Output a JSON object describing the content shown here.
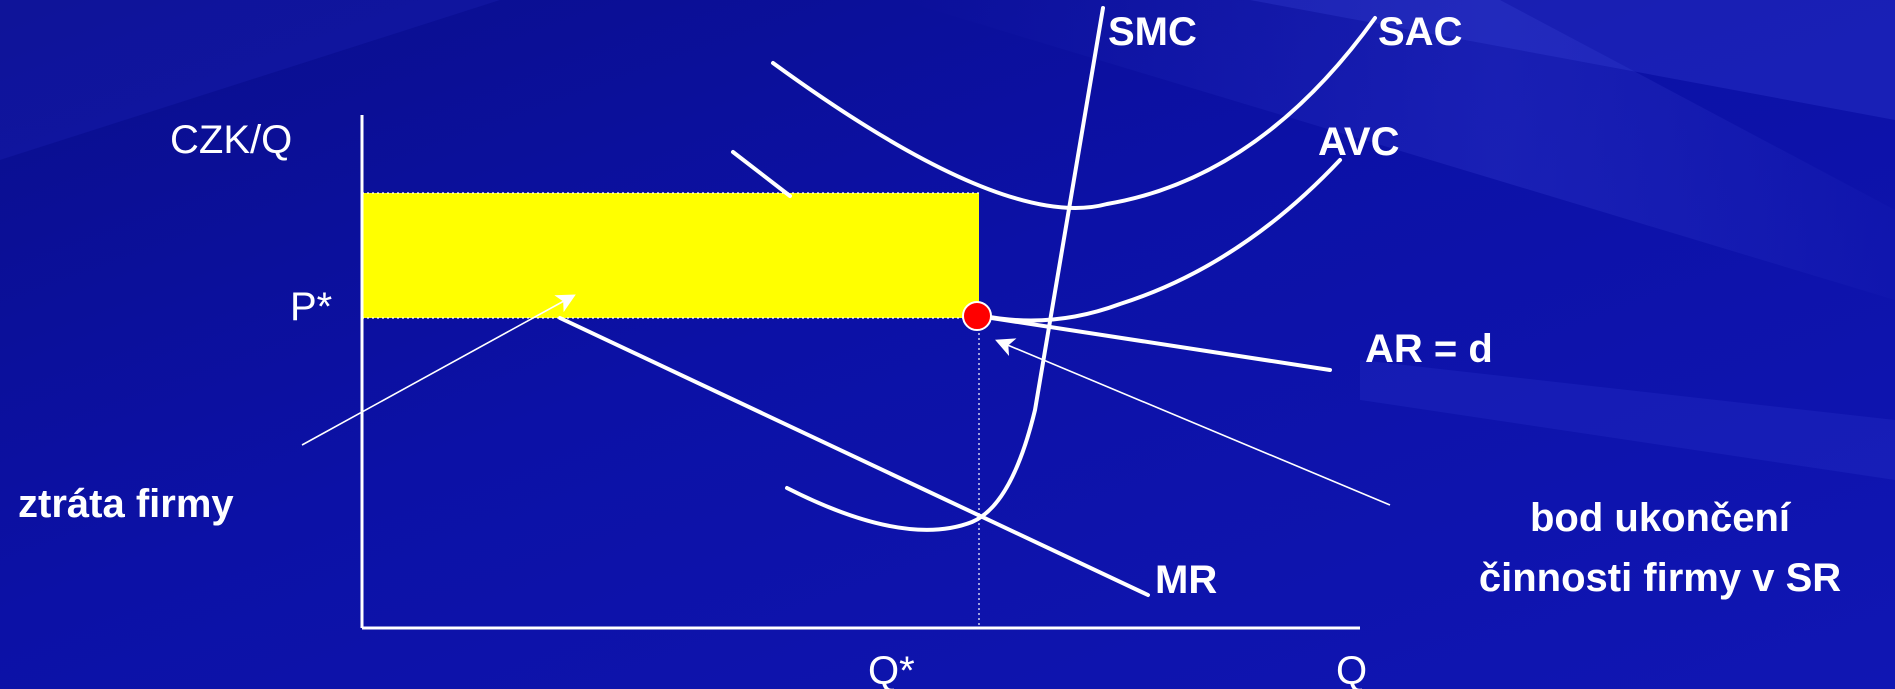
{
  "colors": {
    "background": "#0b0f9e",
    "loss_area": "#ffff00",
    "curves": "#ffffff",
    "shutdown_point": "#ff0000"
  },
  "labels": {
    "y_axis": "CZK/Q",
    "x_axis": "Q",
    "price": "P*",
    "quantity": "Q*",
    "smc": "SMC",
    "sac": "SAC",
    "avc": "AVC",
    "ar": "AR = d",
    "mr": "MR",
    "loss": "ztráta firmy",
    "shutdown_line1": "bod ukončení",
    "shutdown_line2": "činnosti firmy v SR"
  }
}
